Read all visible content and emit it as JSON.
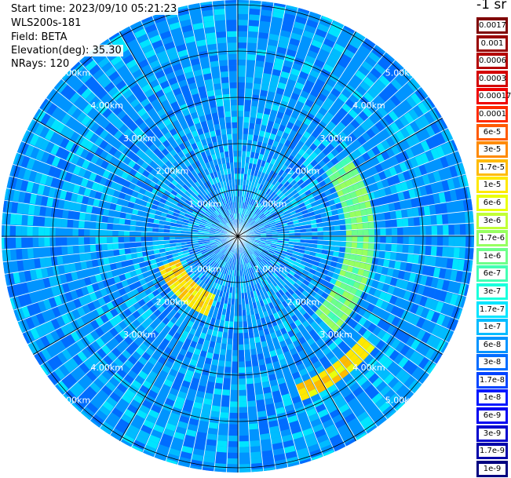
{
  "info": {
    "start_time": "Start time: 2023/09/10 05:21:23",
    "instrument": "WLS200s-181",
    "field": "Field: BETA",
    "elevation": "Elevation(deg): 35.30",
    "nrays": "NRays: 120"
  },
  "colorbar": {
    "units_label": "-1 sr",
    "ticks": [
      "0.0017",
      "0.001",
      "0.0006",
      "0.0003",
      "0.00017",
      "0.0001",
      "6e-5",
      "3e-5",
      "1.7e-5",
      "1e-5",
      "6e-6",
      "3e-6",
      "1.7e-6",
      "1e-6",
      "6e-7",
      "3e-7",
      "1.7e-7",
      "1e-7",
      "6e-8",
      "3e-8",
      "1.7e-8",
      "1e-8",
      "6e-9",
      "3e-9",
      "1.7e-9",
      "1e-9"
    ],
    "colors": [
      "#7f0000",
      "#990000",
      "#b40000",
      "#d40000",
      "#ef0000",
      "#ff2a00",
      "#ff5a00",
      "#ff8a00",
      "#ffbb00",
      "#ffe800",
      "#eaff0c",
      "#c1ff36",
      "#97ff60",
      "#6dff8a",
      "#43ffb3",
      "#1affdd",
      "#00e4ff",
      "#00bcff",
      "#0094ff",
      "#006cff",
      "#0044ff",
      "#0018ff",
      "#0000f1",
      "#0000cd",
      "#0000a8",
      "#000080"
    ]
  },
  "chart_data": {
    "type": "heatmap",
    "projection": "polar",
    "field": "BETA",
    "n_rays": 120,
    "elevation_deg": 35.3,
    "range_rings_km": [
      1,
      2,
      3,
      4,
      5
    ],
    "ring_labels": [
      "1.00km",
      "2.00km",
      "3.00km",
      "4.00km",
      "5.00km"
    ],
    "max_range_km": 5.3,
    "spoke_angles_deg": [
      0,
      30,
      60,
      90,
      120,
      150,
      180,
      210,
      240,
      270,
      300,
      330
    ],
    "background_value": 1.7e-07,
    "features": [
      {
        "azimuth_deg_start": 200,
        "azimuth_deg_end": 250,
        "range_km_start": 1.3,
        "range_km_end": 1.8,
        "value": 1e-05
      },
      {
        "azimuth_deg_start": 128,
        "azimuth_deg_end": 158,
        "range_km_start": 3.4,
        "range_km_end": 3.8,
        "value": 1e-05
      },
      {
        "azimuth_deg_start": 55,
        "azimuth_deg_end": 135,
        "range_km_start": 2.4,
        "range_km_end": 2.9,
        "value": 1e-06
      }
    ]
  }
}
